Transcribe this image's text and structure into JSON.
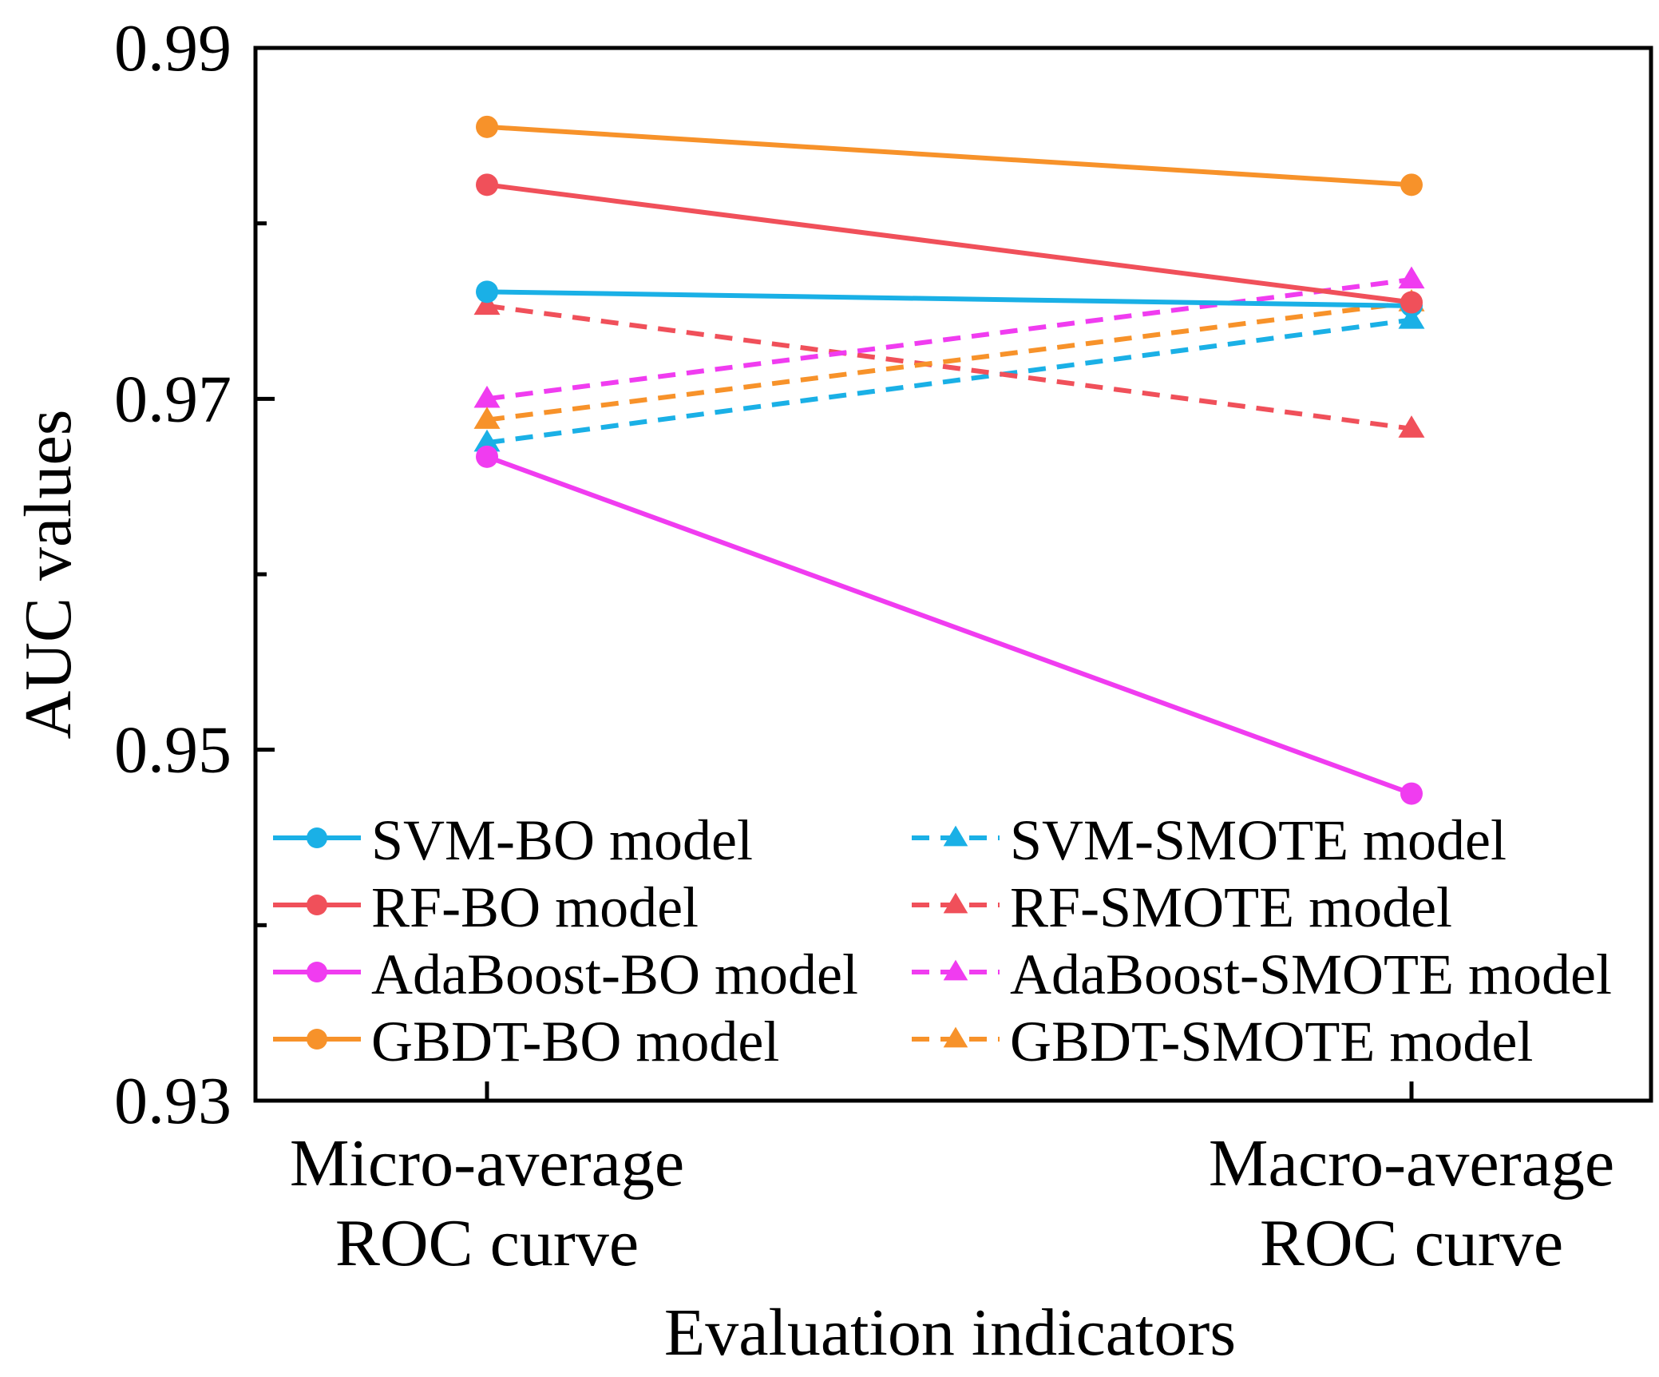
{
  "chart_data": {
    "type": "line",
    "title": "",
    "xlabel": "Evaluation indicators",
    "ylabel": "AUC values",
    "categories": [
      [
        "Micro-average",
        "ROC curve"
      ],
      [
        "Macro-average",
        "ROC curve"
      ]
    ],
    "ylim": [
      0.93,
      0.99
    ],
    "yticks": [
      0.93,
      0.95,
      0.97,
      0.99
    ],
    "ytick_labels": [
      "0.93",
      "0.95",
      "0.97",
      "0.99"
    ],
    "minor_yticks": [
      0.94,
      0.96,
      0.98
    ],
    "grid": false,
    "legend_position": "bottom, two columns",
    "series": [
      {
        "name": "SVM-BO model",
        "values": [
          0.9761,
          0.9753
        ],
        "color": "#1ab0e6",
        "marker": "circle",
        "dash": "solid"
      },
      {
        "name": "RF-BO model",
        "values": [
          0.9822,
          0.9755
        ],
        "color": "#f0505a",
        "marker": "circle",
        "dash": "solid"
      },
      {
        "name": "AdaBoost-BO model",
        "values": [
          0.9667,
          0.9475
        ],
        "color": "#f03cf0",
        "marker": "circle",
        "dash": "solid"
      },
      {
        "name": "GBDT-BO model",
        "values": [
          0.9855,
          0.9822
        ],
        "color": "#f7922a",
        "marker": "circle",
        "dash": "solid"
      },
      {
        "name": "SVM-SMOTE model",
        "values": [
          0.9675,
          0.9745
        ],
        "color": "#1ab0e6",
        "marker": "triangle",
        "dash": "dashed"
      },
      {
        "name": "RF-SMOTE model",
        "values": [
          0.9753,
          0.9683
        ],
        "color": "#f0505a",
        "marker": "triangle",
        "dash": "dashed"
      },
      {
        "name": "AdaBoost-SMOTE model",
        "values": [
          0.97,
          0.9768
        ],
        "color": "#f03cf0",
        "marker": "triangle",
        "dash": "dashed"
      },
      {
        "name": "GBDT-SMOTE model",
        "values": [
          0.9688,
          0.9755
        ],
        "color": "#f7922a",
        "marker": "triangle",
        "dash": "dashed"
      }
    ]
  }
}
